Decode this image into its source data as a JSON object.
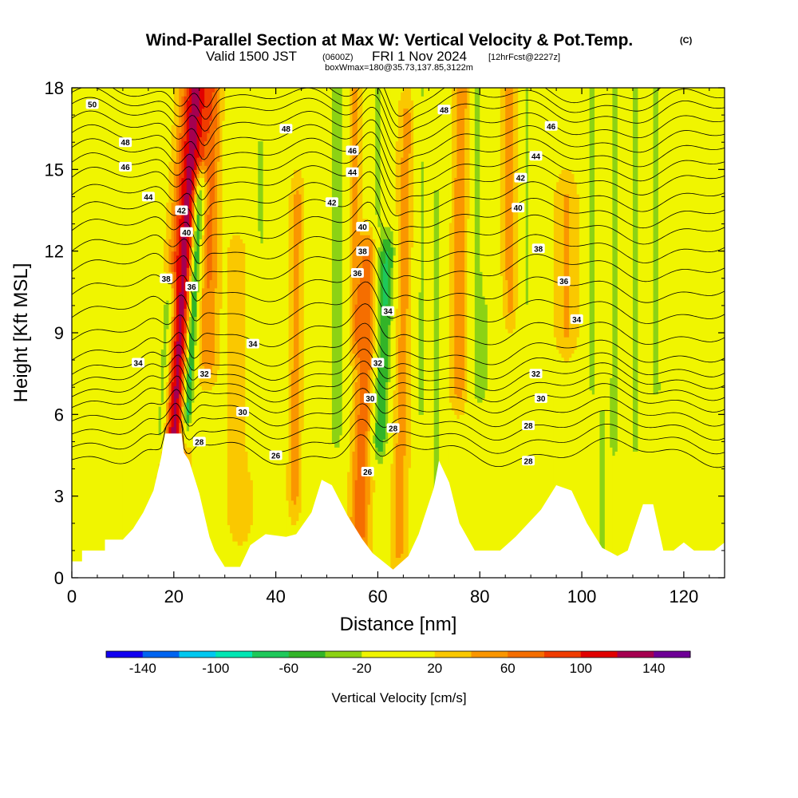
{
  "figure": {
    "title_main": "Wind-Parallel Section at Max W: Vertical Velocity & Pot.Temp.",
    "title_copyright": "(C)",
    "subtitle_valid": "Valid 1500 JST",
    "subtitle_zulu": "(0600Z)",
    "subtitle_date": "FRI 1 Nov 2024",
    "subtitle_fcst": "[12hrFcst@2227z]",
    "box_info": "boxWmax=180@35.73,137.85,3122m"
  },
  "chart_data": {
    "type": "heatmap",
    "xlabel": "Distance [nm]",
    "ylabel": "Height [Kft MSL]",
    "xlim": [
      0,
      128
    ],
    "ylim": [
      0,
      18
    ],
    "x_ticks": [
      "0",
      "20",
      "40",
      "60",
      "80",
      "100",
      "120"
    ],
    "y_ticks": [
      "0",
      "3",
      "6",
      "9",
      "12",
      "15",
      "18"
    ],
    "colorbar": {
      "title": "Vertical Velocity [cm/s]",
      "labels": [
        "-140",
        "-100",
        "-60",
        "-20",
        "20",
        "60",
        "100",
        "140"
      ],
      "boundaries": [
        -160,
        -140,
        -120,
        -100,
        -80,
        -60,
        -40,
        -20,
        0,
        20,
        40,
        60,
        80,
        100,
        120,
        140,
        160
      ],
      "colors": [
        "#1200f0",
        "#0064f0",
        "#00c8f0",
        "#00e6b4",
        "#1ec85a",
        "#32b428",
        "#8cd214",
        "#f0f500",
        "#f0f500",
        "#fac800",
        "#fa9600",
        "#f56e00",
        "#f03c00",
        "#e10000",
        "#a50050",
        "#6e0096"
      ]
    },
    "terrain": [
      [
        0,
        0.6
      ],
      [
        2,
        0.6
      ],
      [
        2,
        1.0
      ],
      [
        6.5,
        1.0
      ],
      [
        6.5,
        1.4
      ],
      [
        10,
        1.4
      ],
      [
        12,
        1.8
      ],
      [
        14,
        2.4
      ],
      [
        16,
        3.2
      ],
      [
        17.5,
        4.4
      ],
      [
        18.3,
        5.3
      ],
      [
        21.5,
        5.3
      ],
      [
        22,
        4.6
      ],
      [
        23,
        4.3
      ],
      [
        25,
        3.1
      ],
      [
        27,
        1.5
      ],
      [
        28,
        1.0
      ],
      [
        30,
        0.4
      ],
      [
        33,
        0.4
      ],
      [
        35,
        1.2
      ],
      [
        38,
        1.6
      ],
      [
        42,
        1.5
      ],
      [
        44,
        1.6
      ],
      [
        47,
        2.4
      ],
      [
        49,
        3.6
      ],
      [
        51,
        3.4
      ],
      [
        54,
        2.3
      ],
      [
        57,
        1.4
      ],
      [
        59,
        0.9
      ],
      [
        61,
        0.6
      ],
      [
        63,
        0.3
      ],
      [
        66,
        0.8
      ],
      [
        68,
        1.6
      ],
      [
        71,
        3.3
      ],
      [
        72,
        4.3
      ],
      [
        74,
        3.5
      ],
      [
        76,
        2.0
      ],
      [
        79,
        1.0
      ],
      [
        84,
        1.0
      ],
      [
        87,
        1.5
      ],
      [
        92,
        2.5
      ],
      [
        95,
        3.4
      ],
      [
        98,
        3.2
      ],
      [
        101,
        2.0
      ],
      [
        104,
        1.1
      ],
      [
        107,
        0.8
      ],
      [
        109,
        1.0
      ],
      [
        112,
        2.7
      ],
      [
        114,
        2.7
      ],
      [
        116,
        1.0
      ],
      [
        118,
        1.0
      ],
      [
        120,
        1.3
      ],
      [
        122,
        1.0
      ],
      [
        126,
        1.0
      ],
      [
        128,
        1.3
      ]
    ],
    "wfields": [
      {
        "x": 21.5,
        "top": 18,
        "bottom": 4.5,
        "width": 4,
        "w": 120,
        "tilt": 0.35
      },
      {
        "x": 23.8,
        "top": 14,
        "bottom": 6,
        "width": 1.6,
        "w": -120,
        "tilt": 0.3
      },
      {
        "x": 19,
        "top": 10,
        "bottom": 5,
        "width": 2,
        "w": -80,
        "tilt": 0.3
      },
      {
        "x": 27,
        "top": 18,
        "bottom": 8,
        "width": 2.5,
        "w": 50,
        "tilt": 0.1
      },
      {
        "x": 37,
        "top": 16,
        "bottom": 5,
        "width": 4,
        "w": -30,
        "tilt": 0.0
      },
      {
        "x": 44,
        "top": 14,
        "bottom": 3,
        "width": 2,
        "w": 40,
        "tilt": 0.05
      },
      {
        "x": 52,
        "top": 18,
        "bottom": 5,
        "width": 2.5,
        "w": -35,
        "tilt": 0.0
      },
      {
        "x": 55.5,
        "top": 18,
        "bottom": 9,
        "width": 2,
        "w": 35,
        "tilt": 0.0
      },
      {
        "x": 58,
        "top": 12,
        "bottom": 1,
        "width": 3,
        "w": 65,
        "tilt": 0.2
      },
      {
        "x": 61.5,
        "top": 12,
        "bottom": 5,
        "width": 2.5,
        "w": -70,
        "tilt": 0.25
      },
      {
        "x": 60,
        "top": 18,
        "bottom": 11,
        "width": 2,
        "w": -35,
        "tilt": 0.0
      },
      {
        "x": 65,
        "top": 17,
        "bottom": 1,
        "width": 2.5,
        "w": 40,
        "tilt": 0.1
      },
      {
        "x": 68.5,
        "top": 18,
        "bottom": 6,
        "width": 2,
        "w": -30,
        "tilt": 0.0
      },
      {
        "x": 71.5,
        "top": 14,
        "bottom": 3,
        "width": 2,
        "w": -35,
        "tilt": 0.0
      },
      {
        "x": 76,
        "top": 18,
        "bottom": 7,
        "width": 2.5,
        "w": 45,
        "tilt": 0.05
      },
      {
        "x": 79.5,
        "top": 18,
        "bottom": 7,
        "width": 2,
        "w": -35,
        "tilt": 0.0
      },
      {
        "x": 82,
        "top": 10,
        "bottom": 1,
        "width": 3,
        "w": -25,
        "tilt": 0.0
      },
      {
        "x": 86,
        "top": 18,
        "bottom": 10,
        "width": 2.5,
        "w": 40,
        "tilt": 0.0
      },
      {
        "x": 89,
        "top": 18,
        "bottom": 10,
        "width": 2.5,
        "w": -30,
        "tilt": 0.0
      },
      {
        "x": 97,
        "top": 14,
        "bottom": 9,
        "width": 3.5,
        "w": 35,
        "tilt": 0.0
      },
      {
        "x": 102,
        "top": 18,
        "bottom": 7,
        "width": 2,
        "w": -30,
        "tilt": 0.0
      },
      {
        "x": 104,
        "top": 6,
        "bottom": 1,
        "width": 2,
        "w": -30,
        "tilt": 0.0
      },
      {
        "x": 106.5,
        "top": 18,
        "bottom": 5,
        "width": 1.8,
        "w": -40,
        "tilt": 0.0
      },
      {
        "x": 110.5,
        "top": 18,
        "bottom": 5,
        "width": 1.8,
        "w": -40,
        "tilt": 0.0
      },
      {
        "x": 114.5,
        "top": 18,
        "bottom": 7,
        "width": 1.8,
        "w": -35,
        "tilt": 0.0
      },
      {
        "x": 117,
        "top": 7,
        "bottom": 2,
        "width": 2,
        "w": -25,
        "tilt": 0.0
      },
      {
        "x": 124,
        "top": 9,
        "bottom": 1,
        "width": 3,
        "w": -25,
        "tilt": 0.0
      },
      {
        "x": 6,
        "top": 14,
        "bottom": 2,
        "width": 4,
        "w": -25,
        "tilt": 0.0
      },
      {
        "x": 13,
        "top": 7,
        "bottom": 2,
        "width": 3,
        "w": -25,
        "tilt": 0.0
      },
      {
        "x": 33,
        "top": 12,
        "bottom": 2,
        "width": 4,
        "w": 25,
        "tilt": 0.0
      }
    ],
    "isentropes": [
      {
        "theta": 26,
        "base": 4.6
      },
      {
        "theta": 27,
        "base": 5.1
      },
      {
        "theta": 28,
        "base": 5.6
      },
      {
        "theta": 29,
        "base": 6.1
      },
      {
        "theta": 30,
        "base": 6.6
      },
      {
        "theta": 31,
        "base": 7.0
      },
      {
        "theta": 32,
        "base": 7.4
      },
      {
        "theta": 33,
        "base": 7.8
      },
      {
        "theta": 34,
        "base": 8.3
      },
      {
        "theta": 35,
        "base": 9.0
      },
      {
        "theta": 36,
        "base": 9.8
      },
      {
        "theta": 37,
        "base": 10.6
      },
      {
        "theta": 38,
        "base": 11.4
      },
      {
        "theta": 39,
        "base": 12.1
      },
      {
        "theta": 40,
        "base": 12.8
      },
      {
        "theta": 41,
        "base": 13.4
      },
      {
        "theta": 42,
        "base": 14.0
      },
      {
        "theta": 43,
        "base": 14.6
      },
      {
        "theta": 44,
        "base": 15.1
      },
      {
        "theta": 45,
        "base": 15.6
      },
      {
        "theta": 46,
        "base": 16.1
      },
      {
        "theta": 47,
        "base": 16.6
      },
      {
        "theta": 48,
        "base": 17.1
      },
      {
        "theta": 49,
        "base": 17.5
      },
      {
        "theta": 50,
        "base": 17.9
      }
    ],
    "contour_labels": [
      {
        "text": "50",
        "x": 4,
        "y": 17.4
      },
      {
        "text": "48",
        "x": 10.5,
        "y": 16.0
      },
      {
        "text": "46",
        "x": 10.5,
        "y": 15.1
      },
      {
        "text": "44",
        "x": 15,
        "y": 14.0
      },
      {
        "text": "42",
        "x": 21.5,
        "y": 13.5
      },
      {
        "text": "40",
        "x": 22.5,
        "y": 12.7
      },
      {
        "text": "38",
        "x": 18.5,
        "y": 11.0
      },
      {
        "text": "36",
        "x": 23.5,
        "y": 10.7
      },
      {
        "text": "34",
        "x": 13,
        "y": 7.9
      },
      {
        "text": "34",
        "x": 35.5,
        "y": 8.6
      },
      {
        "text": "32",
        "x": 26,
        "y": 7.5
      },
      {
        "text": "30",
        "x": 33.5,
        "y": 6.1
      },
      {
        "text": "28",
        "x": 25,
        "y": 5.0
      },
      {
        "text": "26",
        "x": 40,
        "y": 4.5
      },
      {
        "text": "48",
        "x": 42,
        "y": 16.5
      },
      {
        "text": "46",
        "x": 55,
        "y": 15.7
      },
      {
        "text": "44",
        "x": 55,
        "y": 14.9
      },
      {
        "text": "42",
        "x": 51,
        "y": 13.8
      },
      {
        "text": "40",
        "x": 57,
        "y": 12.9
      },
      {
        "text": "38",
        "x": 57,
        "y": 12.0
      },
      {
        "text": "36",
        "x": 56,
        "y": 11.2
      },
      {
        "text": "34",
        "x": 62,
        "y": 9.8
      },
      {
        "text": "32",
        "x": 60,
        "y": 7.9
      },
      {
        "text": "30",
        "x": 58.5,
        "y": 6.6
      },
      {
        "text": "28",
        "x": 63,
        "y": 5.5
      },
      {
        "text": "26",
        "x": 58,
        "y": 3.9
      },
      {
        "text": "48",
        "x": 73,
        "y": 17.2
      },
      {
        "text": "46",
        "x": 94,
        "y": 16.6
      },
      {
        "text": "44",
        "x": 91,
        "y": 15.5
      },
      {
        "text": "42",
        "x": 88,
        "y": 14.7
      },
      {
        "text": "40",
        "x": 87.5,
        "y": 13.6
      },
      {
        "text": "38",
        "x": 91.5,
        "y": 12.1
      },
      {
        "text": "36",
        "x": 96.5,
        "y": 10.9
      },
      {
        "text": "34",
        "x": 99,
        "y": 9.5
      },
      {
        "text": "32",
        "x": 91,
        "y": 7.5
      },
      {
        "text": "30",
        "x": 92,
        "y": 6.6
      },
      {
        "text": "28",
        "x": 89.5,
        "y": 5.6
      },
      {
        "text": "28",
        "x": 89.5,
        "y": 4.3
      }
    ]
  }
}
